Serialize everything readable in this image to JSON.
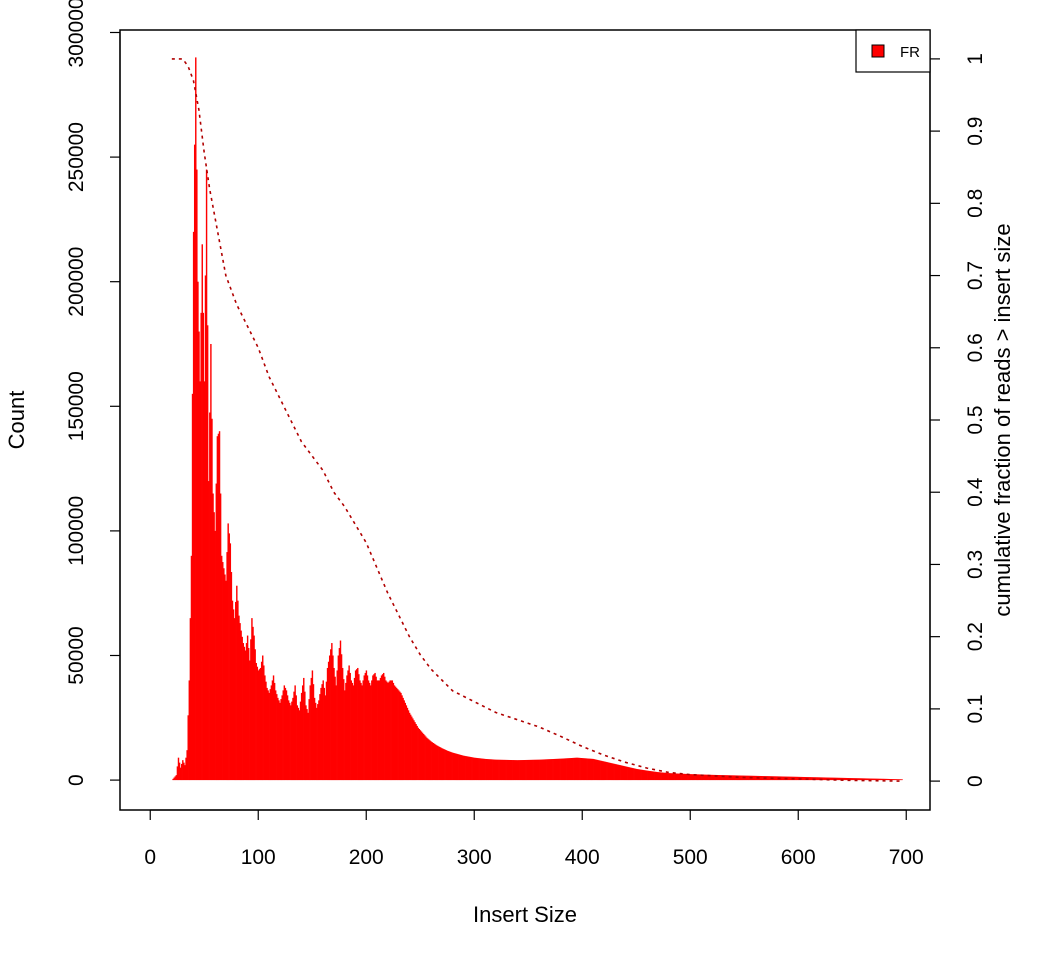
{
  "chart_data": {
    "type": "bar",
    "title": "",
    "xlabel": "Insert Size",
    "ylabel": "Count",
    "y2label": "cumulative fraction of reads > insert size",
    "xlim": [
      -28,
      722
    ],
    "ylim": [
      -12000,
      301000
    ],
    "y2lim": [
      -0.04,
      1.04
    ],
    "xticks": [
      "0",
      "100",
      "200",
      "300",
      "400",
      "500",
      "600",
      "700"
    ],
    "yticks": [
      "0",
      "50000",
      "100000",
      "150000",
      "200000",
      "250000",
      "300000"
    ],
    "y2ticks": [
      "0",
      "0.1",
      "0.2",
      "0.3",
      "0.4",
      "0.5",
      "0.6",
      "0.7",
      "0.8",
      "0.9",
      "1"
    ],
    "grid": false,
    "legend_position": "top-right",
    "series": [
      {
        "name": "FR",
        "color": "#ff0000",
        "histogram_points": [
          [
            20,
            0
          ],
          [
            24,
            2000
          ],
          [
            26,
            9000
          ],
          [
            28,
            5000
          ],
          [
            30,
            8000
          ],
          [
            32,
            6000
          ],
          [
            34,
            12000
          ],
          [
            36,
            40000
          ],
          [
            38,
            90000
          ],
          [
            40,
            220000
          ],
          [
            42,
            290000
          ],
          [
            44,
            200000
          ],
          [
            46,
            160000
          ],
          [
            48,
            215000
          ],
          [
            50,
            160000
          ],
          [
            52,
            245000
          ],
          [
            54,
            120000
          ],
          [
            56,
            175000
          ],
          [
            58,
            115000
          ],
          [
            60,
            100000
          ],
          [
            62,
            138000
          ],
          [
            64,
            140000
          ],
          [
            66,
            90000
          ],
          [
            68,
            85000
          ],
          [
            70,
            80000
          ],
          [
            72,
            103000
          ],
          [
            74,
            95000
          ],
          [
            76,
            72000
          ],
          [
            78,
            65000
          ],
          [
            80,
            78000
          ],
          [
            82,
            66000
          ],
          [
            84,
            60000
          ],
          [
            86,
            55000
          ],
          [
            88,
            52000
          ],
          [
            90,
            58000
          ],
          [
            92,
            48000
          ],
          [
            94,
            65000
          ],
          [
            96,
            58000
          ],
          [
            98,
            47000
          ],
          [
            100,
            44000
          ],
          [
            102,
            45000
          ],
          [
            104,
            50000
          ],
          [
            106,
            42000
          ],
          [
            108,
            37000
          ],
          [
            110,
            35000
          ],
          [
            112,
            38000
          ],
          [
            114,
            42000
          ],
          [
            116,
            36000
          ],
          [
            118,
            33000
          ],
          [
            120,
            31000
          ],
          [
            122,
            34000
          ],
          [
            124,
            38000
          ],
          [
            126,
            36000
          ],
          [
            128,
            32000
          ],
          [
            130,
            30000
          ],
          [
            132,
            33000
          ],
          [
            134,
            38000
          ],
          [
            136,
            30000
          ],
          [
            138,
            28000
          ],
          [
            140,
            35000
          ],
          [
            142,
            41000
          ],
          [
            144,
            30000
          ],
          [
            146,
            27000
          ],
          [
            148,
            38000
          ],
          [
            150,
            44000
          ],
          [
            152,
            33000
          ],
          [
            154,
            29000
          ],
          [
            156,
            32000
          ],
          [
            158,
            37000
          ],
          [
            160,
            40000
          ],
          [
            162,
            34000
          ],
          [
            164,
            45000
          ],
          [
            166,
            50000
          ],
          [
            168,
            55000
          ],
          [
            170,
            45000
          ],
          [
            172,
            38000
          ],
          [
            174,
            50000
          ],
          [
            176,
            56000
          ],
          [
            178,
            45000
          ],
          [
            180,
            36000
          ],
          [
            182,
            42000
          ],
          [
            184,
            46000
          ],
          [
            186,
            40000
          ],
          [
            188,
            38000
          ],
          [
            190,
            44000
          ],
          [
            192,
            45000
          ],
          [
            194,
            40000
          ],
          [
            196,
            38000
          ],
          [
            198,
            42000
          ],
          [
            200,
            44000
          ],
          [
            202,
            40000
          ],
          [
            204,
            38000
          ],
          [
            206,
            42000
          ],
          [
            208,
            43000
          ],
          [
            210,
            40000
          ],
          [
            212,
            40000
          ],
          [
            214,
            42000
          ],
          [
            216,
            43000
          ],
          [
            218,
            40000
          ],
          [
            220,
            39000
          ],
          [
            222,
            40000
          ],
          [
            224,
            40000
          ],
          [
            226,
            38000
          ],
          [
            228,
            37000
          ],
          [
            230,
            36000
          ],
          [
            232,
            35000
          ],
          [
            234,
            33000
          ],
          [
            236,
            31000
          ],
          [
            238,
            29000
          ],
          [
            240,
            27000
          ],
          [
            244,
            24000
          ],
          [
            248,
            21000
          ],
          [
            252,
            19000
          ],
          [
            256,
            17000
          ],
          [
            260,
            15500
          ],
          [
            265,
            14000
          ],
          [
            270,
            12800
          ],
          [
            275,
            11800
          ],
          [
            280,
            11000
          ],
          [
            290,
            9800
          ],
          [
            300,
            9000
          ],
          [
            310,
            8500
          ],
          [
            320,
            8200
          ],
          [
            340,
            8000
          ],
          [
            360,
            8200
          ],
          [
            380,
            8600
          ],
          [
            395,
            9000
          ],
          [
            410,
            8500
          ],
          [
            420,
            7500
          ],
          [
            430,
            6500
          ],
          [
            440,
            5500
          ],
          [
            450,
            4500
          ],
          [
            460,
            3800
          ],
          [
            470,
            3200
          ],
          [
            480,
            2800
          ],
          [
            500,
            2400
          ],
          [
            520,
            2100
          ],
          [
            540,
            1900
          ],
          [
            560,
            1700
          ],
          [
            580,
            1500
          ],
          [
            600,
            1300
          ],
          [
            620,
            1100
          ],
          [
            640,
            900
          ],
          [
            660,
            700
          ],
          [
            680,
            500
          ],
          [
            696,
            300
          ]
        ]
      },
      {
        "name": "cumulative fraction of reads > insert size",
        "color": "#b00000",
        "style": "dotted",
        "axis": "right",
        "points": [
          [
            20,
            1.0
          ],
          [
            30,
            1.0
          ],
          [
            35,
            0.99
          ],
          [
            40,
            0.97
          ],
          [
            45,
            0.93
          ],
          [
            50,
            0.87
          ],
          [
            55,
            0.82
          ],
          [
            60,
            0.78
          ],
          [
            65,
            0.74
          ],
          [
            70,
            0.7
          ],
          [
            80,
            0.66
          ],
          [
            90,
            0.63
          ],
          [
            100,
            0.6
          ],
          [
            110,
            0.56
          ],
          [
            120,
            0.53
          ],
          [
            130,
            0.5
          ],
          [
            140,
            0.47
          ],
          [
            150,
            0.45
          ],
          [
            160,
            0.43
          ],
          [
            170,
            0.4
          ],
          [
            180,
            0.38
          ],
          [
            190,
            0.355
          ],
          [
            200,
            0.33
          ],
          [
            210,
            0.295
          ],
          [
            220,
            0.26
          ],
          [
            230,
            0.23
          ],
          [
            240,
            0.2
          ],
          [
            250,
            0.175
          ],
          [
            260,
            0.155
          ],
          [
            270,
            0.14
          ],
          [
            280,
            0.125
          ],
          [
            300,
            0.11
          ],
          [
            320,
            0.095
          ],
          [
            340,
            0.085
          ],
          [
            360,
            0.075
          ],
          [
            380,
            0.062
          ],
          [
            400,
            0.048
          ],
          [
            420,
            0.036
          ],
          [
            440,
            0.026
          ],
          [
            460,
            0.018
          ],
          [
            480,
            0.012
          ],
          [
            500,
            0.009
          ],
          [
            550,
            0.005
          ],
          [
            600,
            0.003
          ],
          [
            650,
            0.001
          ],
          [
            696,
            0.0
          ]
        ]
      }
    ]
  }
}
